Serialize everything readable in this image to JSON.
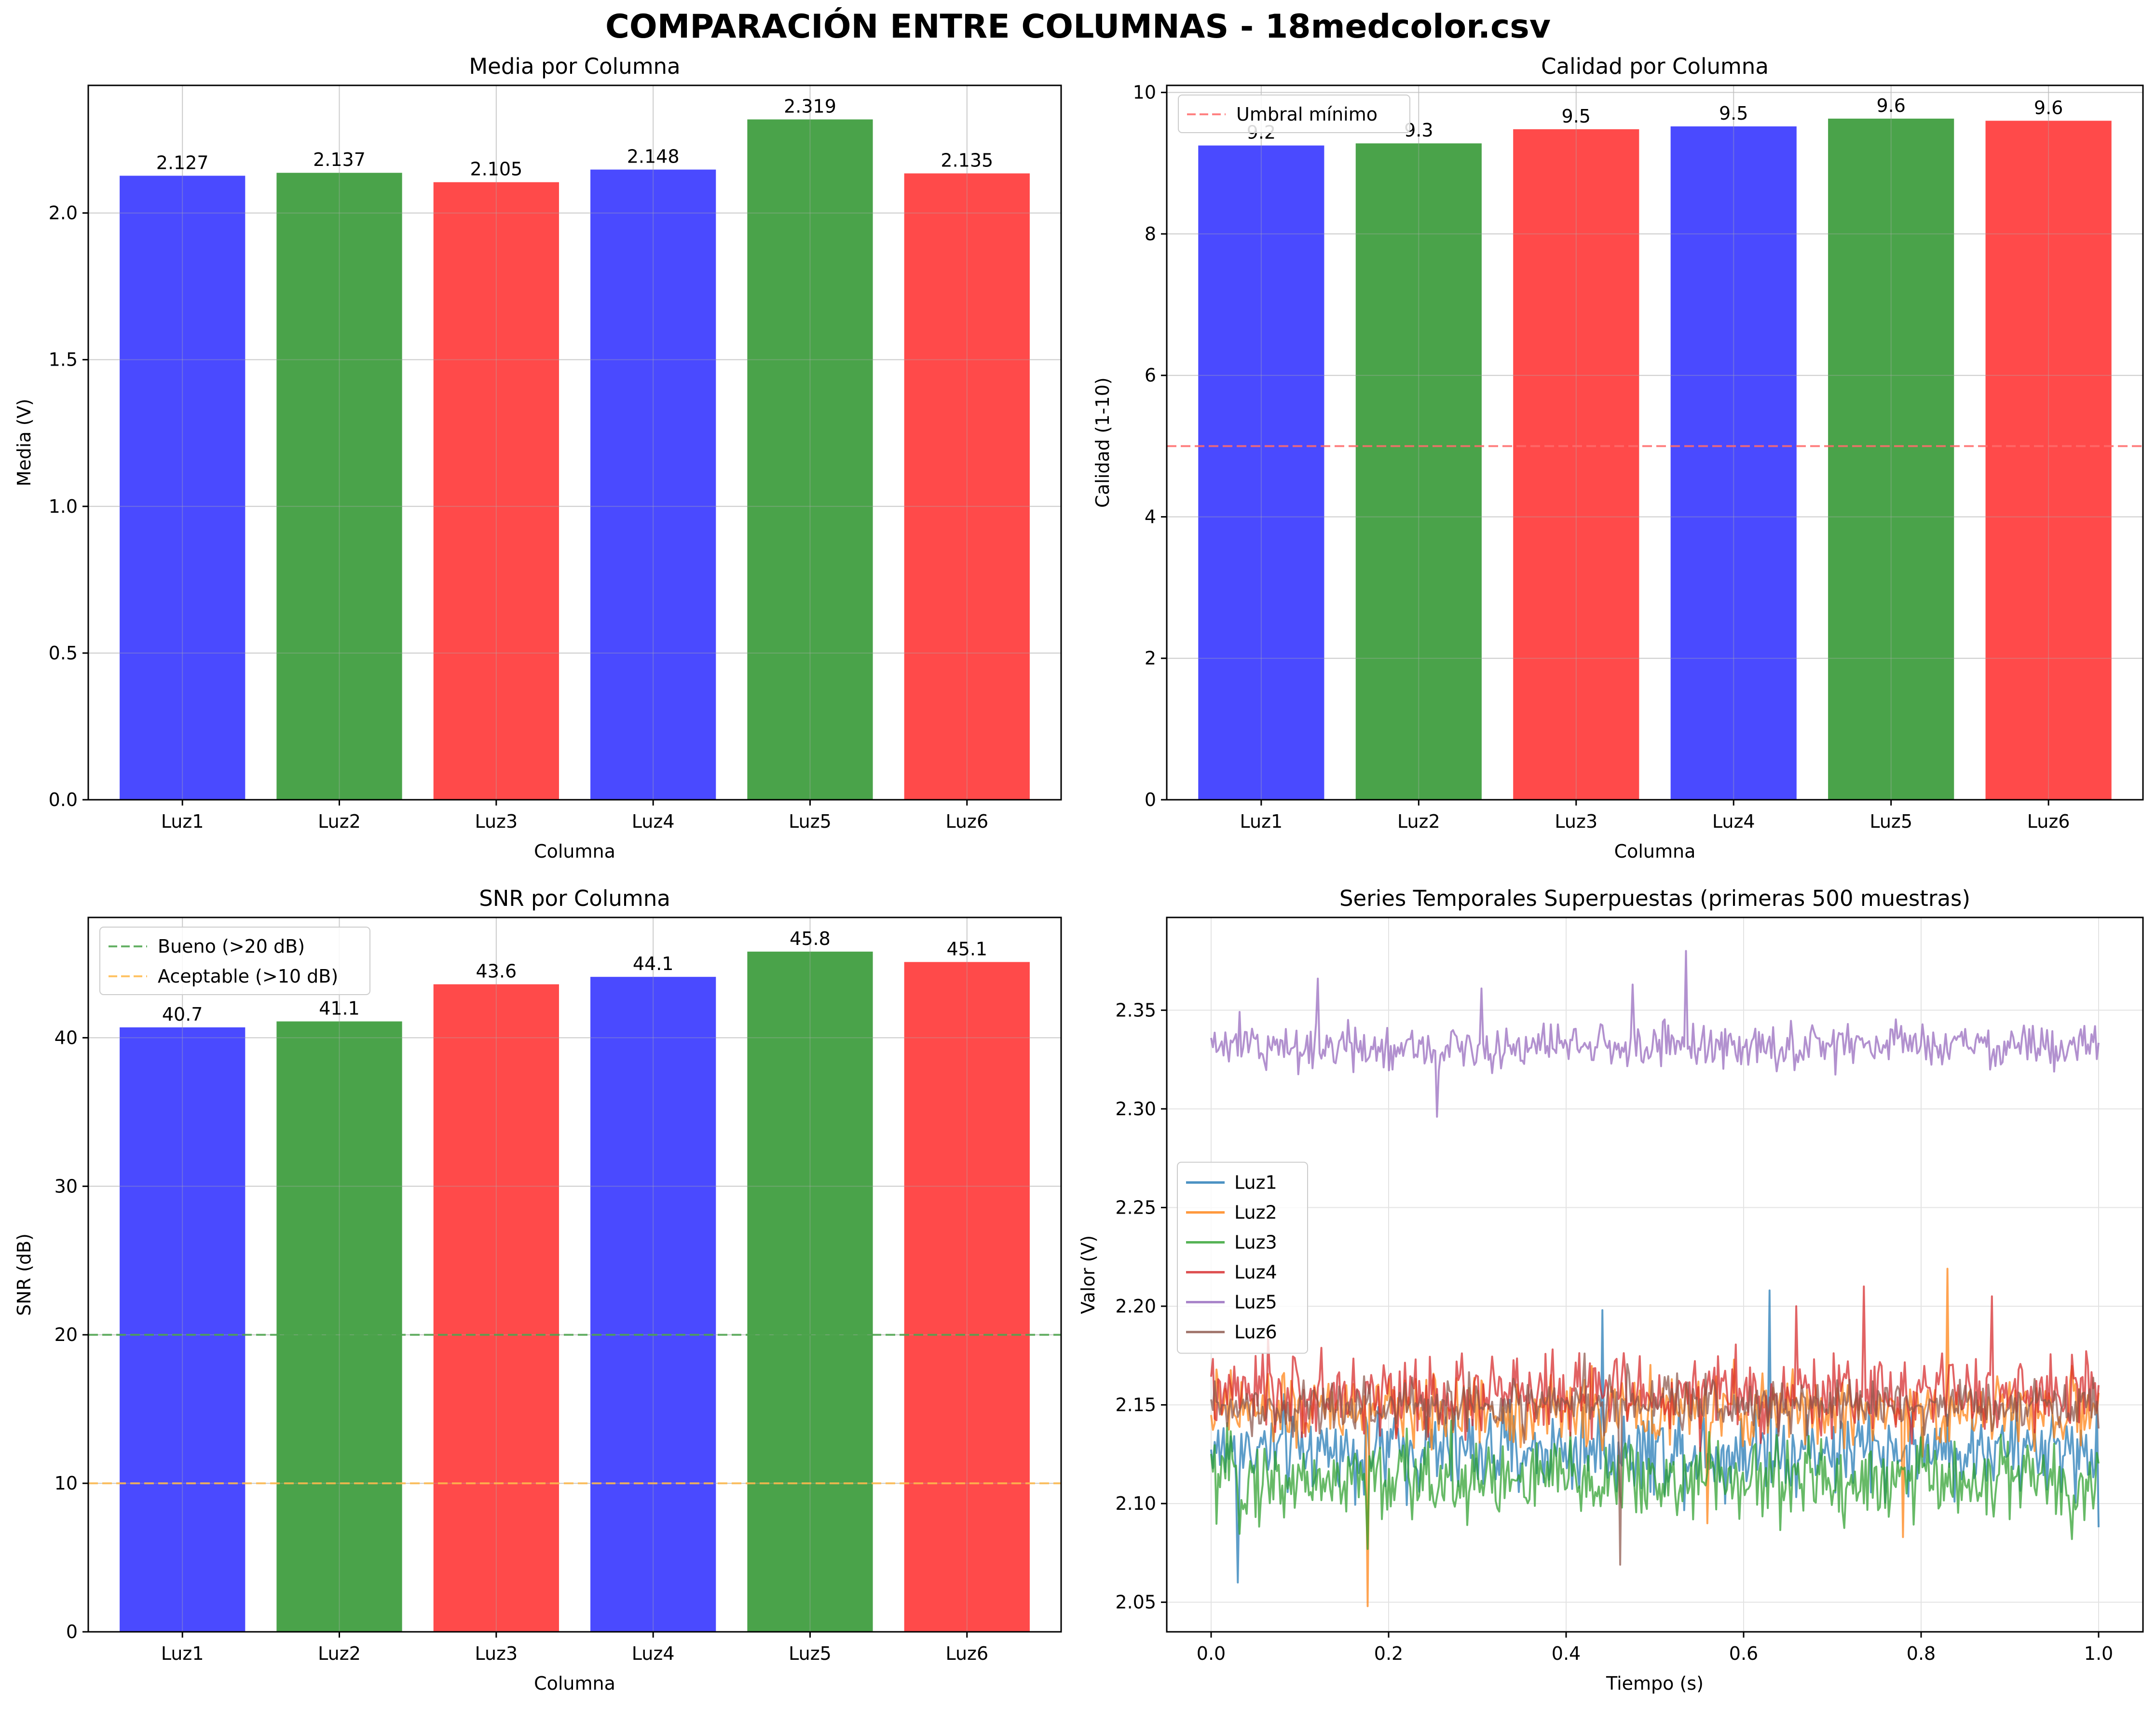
{
  "figure": {
    "suptitle": "COMPARACIÓN ENTRE COLUMNAS - 18medcolor.csv"
  },
  "chart_data": [
    {
      "type": "bar",
      "title": "Media por Columna",
      "xlabel": "Columna",
      "ylabel": "Media (V)",
      "categories": [
        "Luz1",
        "Luz2",
        "Luz3",
        "Luz4",
        "Luz5",
        "Luz6"
      ],
      "values": [
        2.127,
        2.137,
        2.105,
        2.148,
        2.319,
        2.135
      ],
      "value_labels": [
        "2.127",
        "2.137",
        "2.105",
        "2.148",
        "2.319",
        "2.135"
      ],
      "bar_colors": [
        "#4a4aff",
        "#4aa34a",
        "#ff4a4a",
        "#4a4aff",
        "#4aa34a",
        "#ff4a4a"
      ],
      "ylim": [
        0,
        2.435
      ],
      "yticks": [
        0.0,
        0.5,
        1.0,
        1.5,
        2.0
      ],
      "ytick_labels": [
        "0.0",
        "0.5",
        "1.0",
        "1.5",
        "2.0"
      ],
      "grid": true,
      "reference_lines": []
    },
    {
      "type": "bar",
      "title": "Calidad por Columna",
      "xlabel": "Columna",
      "ylabel": "Calidad (1-10)",
      "categories": [
        "Luz1",
        "Luz2",
        "Luz3",
        "Luz4",
        "Luz5",
        "Luz6"
      ],
      "values": [
        9.25,
        9.28,
        9.48,
        9.52,
        9.63,
        9.6
      ],
      "value_labels": [
        "9.2",
        "9.3",
        "9.5",
        "9.5",
        "9.6",
        "9.6"
      ],
      "bar_colors": [
        "#4a4aff",
        "#4aa34a",
        "#ff4a4a",
        "#4a4aff",
        "#4aa34a",
        "#ff4a4a"
      ],
      "ylim": [
        0,
        10.1
      ],
      "yticks": [
        0,
        2,
        4,
        6,
        8,
        10
      ],
      "ytick_labels": [
        "0",
        "2",
        "4",
        "6",
        "8",
        "10"
      ],
      "grid": true,
      "reference_lines": [
        {
          "value": 5,
          "label": "Umbral mínimo",
          "color": "#ff6b6b"
        }
      ],
      "legend_position": "top-left"
    },
    {
      "type": "bar",
      "title": "SNR por Columna",
      "xlabel": "Columna",
      "ylabel": "SNR (dB)",
      "categories": [
        "Luz1",
        "Luz2",
        "Luz3",
        "Luz4",
        "Luz5",
        "Luz6"
      ],
      "values": [
        40.7,
        41.1,
        43.6,
        44.1,
        45.8,
        45.1
      ],
      "value_labels": [
        "40.7",
        "41.1",
        "43.6",
        "44.1",
        "45.8",
        "45.1"
      ],
      "bar_colors": [
        "#4a4aff",
        "#4aa34a",
        "#ff4a4a",
        "#4a4aff",
        "#4aa34a",
        "#ff4a4a"
      ],
      "ylim": [
        0,
        48.1
      ],
      "yticks": [
        0,
        10,
        20,
        30,
        40
      ],
      "ytick_labels": [
        "0",
        "10",
        "20",
        "30",
        "40"
      ],
      "grid": true,
      "reference_lines": [
        {
          "value": 20,
          "label": "Bueno (>20 dB)",
          "color": "#4aa34a"
        },
        {
          "value": 10,
          "label": "Aceptable (>10 dB)",
          "color": "#ffb84a"
        }
      ],
      "legend_position": "top-left"
    },
    {
      "type": "line",
      "title": "Series Temporales Superpuestas (primeras 500 muestras)",
      "xlabel": "Tiempo (s)",
      "ylabel": "Valor (V)",
      "xlim": [
        -0.05,
        1.05
      ],
      "ylim": [
        2.035,
        2.397
      ],
      "xticks": [
        0.0,
        0.2,
        0.4,
        0.6,
        0.8,
        1.0
      ],
      "xtick_labels": [
        "0.0",
        "0.2",
        "0.4",
        "0.6",
        "0.8",
        "1.0"
      ],
      "yticks": [
        2.05,
        2.1,
        2.15,
        2.2,
        2.25,
        2.3,
        2.35
      ],
      "ytick_labels": [
        "2.05",
        "2.10",
        "2.15",
        "2.20",
        "2.25",
        "2.30",
        "2.35"
      ],
      "grid": true,
      "legend_position": "center-left",
      "x_range": [
        0,
        1
      ],
      "n_samples": 500,
      "series": [
        {
          "name": "Luz1",
          "color": "#1f77b4",
          "mean": 2.127,
          "spread": 0.011,
          "spikes": [
            [
              0.03,
              2.06
            ],
            [
              0.44,
              2.198
            ],
            [
              0.63,
              2.208
            ],
            [
              0.58,
              2.1
            ],
            [
              1.0,
              2.088
            ]
          ]
        },
        {
          "name": "Luz2",
          "color": "#ff7f0e",
          "mean": 2.147,
          "spread": 0.009,
          "spikes": [
            [
              0.177,
              2.048
            ],
            [
              0.83,
              2.219
            ],
            [
              0.56,
              2.09
            ],
            [
              0.78,
              2.083
            ]
          ]
        },
        {
          "name": "Luz3",
          "color": "#2ca02c",
          "mean": 2.112,
          "spread": 0.011,
          "spikes": [
            [
              0.176,
              2.077
            ],
            [
              0.97,
              2.082
            ],
            [
              0.27,
              2.142
            ]
          ]
        },
        {
          "name": "Luz4",
          "color": "#d62728",
          "mean": 2.155,
          "spread": 0.01,
          "spikes": [
            [
              0.735,
              2.21
            ],
            [
              0.88,
              2.205
            ],
            [
              0.66,
              2.2
            ]
          ]
        },
        {
          "name": "Luz5",
          "color": "#9467bd",
          "mean": 2.332,
          "spread": 0.006,
          "spikes": [
            [
              0.535,
              2.38
            ],
            [
              0.255,
              2.296
            ],
            [
              0.12,
              2.366
            ],
            [
              0.305,
              2.361
            ],
            [
              0.475,
              2.363
            ]
          ]
        },
        {
          "name": "Luz6",
          "color": "#8c564b",
          "mean": 2.15,
          "spread": 0.007,
          "spikes": [
            [
              0.46,
              2.069
            ],
            [
              0.42,
              2.176
            ]
          ]
        }
      ]
    }
  ]
}
